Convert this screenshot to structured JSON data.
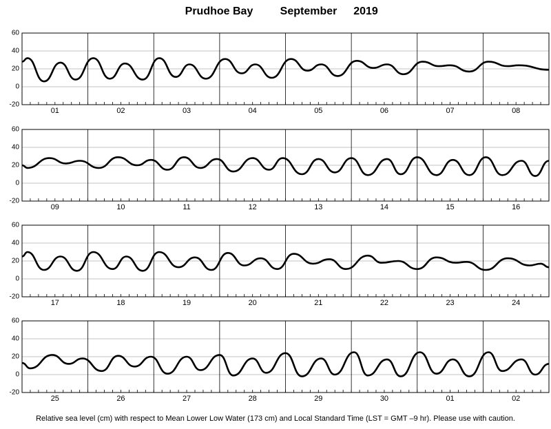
{
  "header": {
    "location": "Prudhoe Bay",
    "month": "September",
    "year": "2019"
  },
  "note": "Relative sea level (cm) with respect to Mean Lower Low Water (173 cm) and Local Standard Time (LST = GMT –9 hr). Please use with caution.",
  "chart_data": [
    {
      "type": "line",
      "xlim": [
        0,
        192
      ],
      "ylim": [
        -20,
        60
      ],
      "yticks": [
        -20,
        0,
        20,
        40,
        60
      ],
      "grid": true,
      "xticks": [
        {
          "value": 12,
          "label": "01"
        },
        {
          "value": 36,
          "label": "02"
        },
        {
          "value": 60,
          "label": "03"
        },
        {
          "value": 84,
          "label": "04"
        },
        {
          "value": 108,
          "label": "05"
        },
        {
          "value": 132,
          "label": "06"
        },
        {
          "value": 156,
          "label": "07"
        },
        {
          "value": 180,
          "label": "08"
        }
      ],
      "series": [
        {
          "color": "#000000",
          "x": [
            0,
            2,
            8,
            14,
            19.5,
            26,
            32,
            37.5,
            44,
            50,
            56,
            61,
            67,
            74,
            80,
            85,
            91,
            98,
            104,
            109,
            115,
            122,
            128,
            133,
            139,
            146,
            152,
            156,
            163,
            170,
            177,
            181,
            192
          ],
          "values": [
            28,
            32,
            6,
            27,
            8,
            32,
            9,
            26,
            8,
            32,
            11,
            25,
            9,
            31,
            15,
            25,
            10,
            31,
            18,
            25,
            12,
            29,
            21,
            25,
            14,
            28,
            23,
            24,
            17,
            28,
            23,
            24,
            19
          ]
        }
      ]
    },
    {
      "type": "line",
      "xlim": [
        0,
        192
      ],
      "ylim": [
        -20,
        60
      ],
      "yticks": [
        -20,
        0,
        20,
        40,
        60
      ],
      "grid": true,
      "xticks": [
        {
          "value": 12,
          "label": "09"
        },
        {
          "value": 36,
          "label": "10"
        },
        {
          "value": 60,
          "label": "11"
        },
        {
          "value": 84,
          "label": "12"
        },
        {
          "value": 108,
          "label": "13"
        },
        {
          "value": 132,
          "label": "14"
        },
        {
          "value": 156,
          "label": "15"
        },
        {
          "value": 180,
          "label": "16"
        }
      ],
      "series": [
        {
          "color": "#000000",
          "x": [
            0,
            2,
            10,
            16,
            21,
            28,
            35,
            42,
            47,
            53,
            59,
            65,
            71,
            77,
            84,
            90,
            95,
            102,
            108,
            114,
            120,
            126,
            133,
            138,
            144,
            151,
            157,
            163,
            169,
            175,
            182,
            187,
            192
          ],
          "values": [
            20,
            17,
            28,
            22,
            25,
            17,
            29,
            20,
            26,
            15,
            29,
            17,
            27,
            13,
            28,
            15,
            28,
            10,
            27,
            12,
            28,
            9,
            27,
            10,
            29,
            9,
            26,
            9,
            29,
            9,
            25,
            8,
            25
          ]
        }
      ]
    },
    {
      "type": "line",
      "xlim": [
        0,
        192
      ],
      "ylim": [
        -20,
        60
      ],
      "yticks": [
        -20,
        0,
        20,
        40,
        60
      ],
      "grid": true,
      "xticks": [
        {
          "value": 12,
          "label": "17"
        },
        {
          "value": 36,
          "label": "18"
        },
        {
          "value": 60,
          "label": "19"
        },
        {
          "value": 84,
          "label": "20"
        },
        {
          "value": 108,
          "label": "21"
        },
        {
          "value": 132,
          "label": "22"
        },
        {
          "value": 156,
          "label": "23"
        },
        {
          "value": 180,
          "label": "24"
        }
      ],
      "series": [
        {
          "color": "#000000",
          "x": [
            0,
            2,
            8,
            14,
            20,
            26,
            33,
            38,
            44,
            50,
            57,
            63,
            69,
            75,
            81,
            87,
            93,
            99,
            106,
            112,
            118,
            126,
            131,
            137,
            144,
            151,
            158,
            162,
            169,
            177,
            185,
            189,
            192
          ],
          "values": [
            25,
            30,
            10,
            25,
            9,
            30,
            11,
            25,
            9,
            30,
            13,
            24,
            10,
            29,
            15,
            23,
            11,
            28,
            17,
            22,
            11,
            26,
            18,
            20,
            11,
            24,
            18,
            19,
            10,
            23,
            15,
            17,
            13
          ]
        }
      ]
    },
    {
      "type": "line",
      "xlim": [
        0,
        192
      ],
      "ylim": [
        -20,
        60
      ],
      "yticks": [
        -20,
        0,
        20,
        40,
        60
      ],
      "grid": true,
      "xticks": [
        {
          "value": 12,
          "label": "25"
        },
        {
          "value": 36,
          "label": "26"
        },
        {
          "value": 60,
          "label": "27"
        },
        {
          "value": 84,
          "label": "28"
        },
        {
          "value": 108,
          "label": "29"
        },
        {
          "value": 132,
          "label": "30"
        },
        {
          "value": 156,
          "label": "01"
        },
        {
          "value": 180,
          "label": "02"
        }
      ],
      "series": [
        {
          "color": "#000000",
          "x": [
            0,
            3,
            11,
            17,
            22,
            29,
            35,
            41,
            47,
            53,
            60,
            65,
            72,
            77,
            84,
            89,
            96,
            102,
            109,
            114,
            121,
            126,
            133,
            138,
            145,
            151,
            157,
            163,
            170,
            175,
            182,
            187,
            192
          ],
          "values": [
            13,
            7,
            22,
            12,
            18,
            4,
            21,
            9,
            20,
            1,
            20,
            5,
            22,
            -1,
            18,
            2,
            24,
            -2,
            18,
            0,
            25,
            -1,
            17,
            -2,
            25,
            1,
            17,
            -2,
            25,
            4,
            17,
            0,
            12
          ]
        }
      ]
    }
  ]
}
